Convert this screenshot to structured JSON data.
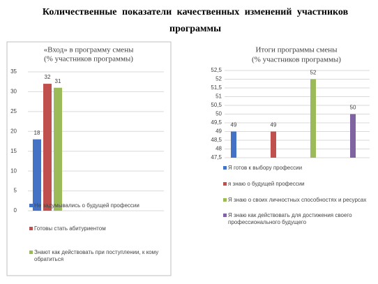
{
  "title": "Количественные показатели качественных изменений участников программы",
  "chart_data": [
    {
      "type": "bar",
      "title": "«Вход» в программу смены",
      "subtitle": "(% участников программы)",
      "categories": [
        null
      ],
      "series": [
        {
          "name": "Не задумывались о будущей профессии",
          "color": "#4472c4",
          "values": [
            18
          ]
        },
        {
          "name": "Готовы стать абитуриентом",
          "color": "#c0504d",
          "values": [
            32
          ]
        },
        {
          "name": "Знают как действовать при поступлении, к кому обратиться",
          "color": "#9bbb59",
          "values": [
            31
          ]
        }
      ],
      "ylim": [
        0,
        35
      ],
      "yticks": [
        0,
        5,
        10,
        15,
        20,
        25,
        30,
        35
      ],
      "grid": true,
      "legend": "bottom"
    },
    {
      "type": "bar",
      "title": "Итоги программы смены",
      "subtitle": "(% участников программы)",
      "categories": [
        null
      ],
      "series": [
        {
          "name": "Я готов к выбору профессии",
          "color": "#4472c4",
          "values": [
            49
          ]
        },
        {
          "name": "я знаю о будущей профессии",
          "color": "#c0504d",
          "values": [
            49
          ]
        },
        {
          "name": "Я знаю о своих личностных способностях и ресурсах",
          "color": "#9bbb59",
          "values": [
            52
          ]
        },
        {
          "name": "Я знаю как действовать для достижения своего профессионального будущего",
          "color": "#8064a2",
          "values": [
            50
          ]
        }
      ],
      "ylim": [
        47.5,
        52.5
      ],
      "yticks": [
        {
          "value": 47.5,
          "label": "47,5"
        },
        48,
        {
          "value": 48.5,
          "label": "48,5"
        },
        49,
        {
          "value": 49.5,
          "label": "49,5"
        },
        50,
        {
          "value": 50.5,
          "label": "50,5"
        },
        51,
        {
          "value": 51.5,
          "label": "51,5"
        },
        52,
        {
          "value": 52.5,
          "label": "52,5"
        }
      ],
      "grid": true,
      "legend": "bottom"
    }
  ]
}
